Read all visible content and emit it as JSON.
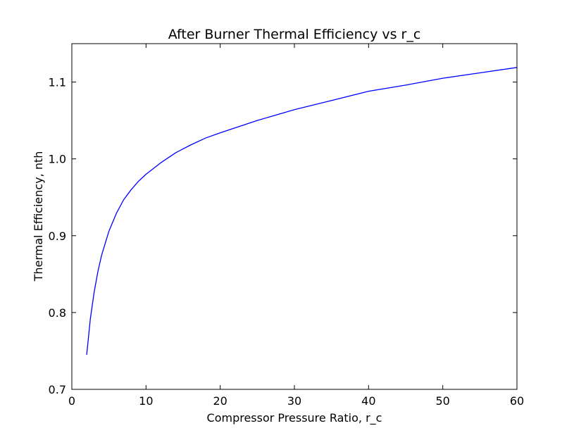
{
  "chart_data": {
    "type": "line",
    "title": "After Burner Thermal Efficiency vs r_c",
    "xlabel": "Compressor Pressure Ratio, r_c",
    "ylabel": "Thermal Efficiency, nth",
    "xlim": [
      0,
      60
    ],
    "ylim": [
      0.7,
      1.15
    ],
    "xticks": [
      0,
      10,
      20,
      30,
      40,
      50,
      60
    ],
    "xtick_labels": [
      "0",
      "10",
      "20",
      "30",
      "40",
      "50",
      "60"
    ],
    "yticks": [
      0.7,
      0.8,
      0.9,
      1.0,
      1.1
    ],
    "ytick_labels": [
      "0.7",
      "0.8",
      "0.9",
      "1.0",
      "1.1"
    ],
    "grid": false,
    "series": [
      {
        "color": "#0000ff",
        "x": [
          2,
          2.5,
          3,
          3.5,
          4,
          5,
          6,
          7,
          8,
          9,
          10,
          12,
          14,
          16,
          18,
          20,
          25,
          30,
          35,
          40,
          45,
          50,
          55,
          60
        ],
        "y": [
          0.745,
          0.792,
          0.826,
          0.853,
          0.874,
          0.906,
          0.929,
          0.947,
          0.96,
          0.971,
          0.98,
          0.995,
          1.008,
          1.018,
          1.027,
          1.034,
          1.05,
          1.064,
          1.076,
          1.088,
          1.096,
          1.105,
          1.112,
          1.119
        ]
      }
    ]
  }
}
